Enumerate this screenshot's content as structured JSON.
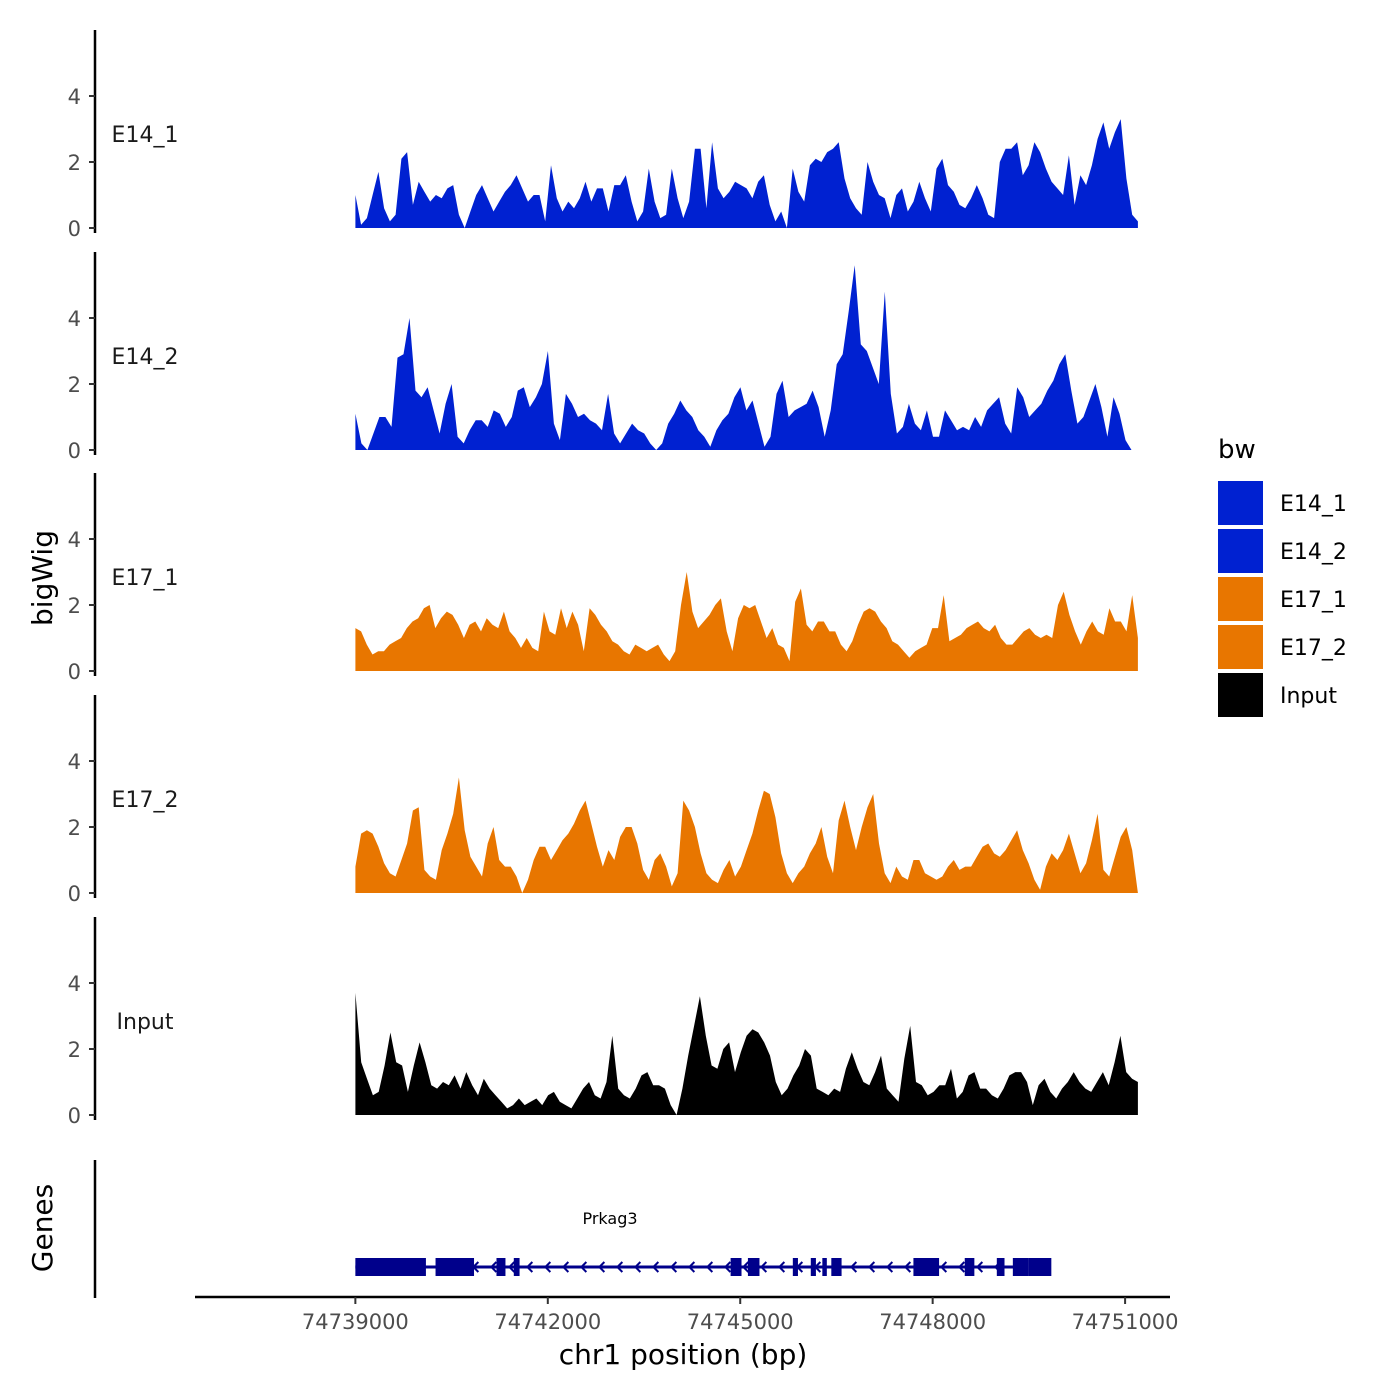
{
  "chart_data": {
    "type": "area",
    "title": "",
    "xlabel": "chr1 position (bp)",
    "ylabel": "bigWig",
    "genes_label": "Genes",
    "xlim": [
      74736500,
      74751700
    ],
    "x_ticks": [
      74739000,
      74742000,
      74745000,
      74748000,
      74751000
    ],
    "x_tick_labels": [
      "74739000",
      "74742000",
      "74745000",
      "74748000",
      "74751000"
    ],
    "ylim": [
      0,
      6
    ],
    "y_ticks": [
      0,
      2,
      4
    ],
    "y_tick_labels": [
      "0",
      "2",
      "4"
    ],
    "legend": {
      "title": "bw",
      "placement": "right",
      "entries": [
        {
          "label": "E14_1",
          "color": "#0021d1"
        },
        {
          "label": "E14_2",
          "color": "#0021d1"
        },
        {
          "label": "E17_1",
          "color": "#e87600"
        },
        {
          "label": "E17_2",
          "color": "#e87600"
        },
        {
          "label": "Input",
          "color": "#000000"
        }
      ]
    },
    "series": [
      {
        "name": "E14_1",
        "color": "#0021d1",
        "x_start": 74739000,
        "x_end": 74751200,
        "values": [
          1.0,
          0.1,
          0.3,
          1.0,
          1.7,
          0.6,
          0.2,
          0.4,
          2.1,
          2.3,
          0.7,
          1.4,
          1.1,
          0.8,
          1.0,
          0.9,
          1.2,
          1.3,
          0.4,
          0.0,
          0.5,
          1.0,
          1.3,
          0.9,
          0.5,
          0.8,
          1.1,
          1.3,
          1.6,
          1.2,
          0.8,
          1.0,
          1.0,
          0.2,
          1.9,
          0.9,
          0.5,
          0.8,
          0.6,
          0.9,
          1.4,
          0.8,
          1.2,
          1.2,
          0.5,
          1.3,
          1.3,
          1.6,
          0.8,
          0.2,
          0.5,
          1.8,
          0.8,
          0.3,
          0.4,
          1.8,
          0.9,
          0.3,
          0.8,
          2.4,
          2.4,
          0.6,
          2.6,
          1.2,
          0.9,
          1.1,
          1.4,
          1.3,
          1.2,
          0.9,
          1.4,
          1.6,
          0.7,
          0.2,
          0.5,
          0.0,
          1.8,
          1.1,
          0.8,
          1.9,
          2.1,
          2.0,
          2.3,
          2.4,
          2.6,
          1.5,
          0.9,
          0.6,
          0.4,
          2.0,
          1.4,
          1.0,
          0.9,
          0.3,
          1.0,
          1.2,
          0.5,
          0.8,
          1.4,
          0.9,
          0.5,
          1.8,
          2.1,
          1.3,
          1.1,
          0.7,
          0.6,
          0.9,
          1.3,
          0.9,
          0.4,
          0.3,
          2.0,
          2.4,
          2.4,
          2.6,
          1.6,
          1.9,
          2.6,
          2.3,
          1.8,
          1.4,
          1.2,
          1.0,
          2.2,
          0.7,
          1.6,
          1.3,
          1.9,
          2.7,
          3.2,
          2.4,
          2.9,
          3.3,
          1.5,
          0.4,
          0.2
        ]
      },
      {
        "name": "E14_2",
        "color": "#0021d1",
        "x_start": 74739000,
        "x_end": 74751100,
        "values": [
          1.1,
          0.2,
          0.0,
          0.5,
          1.0,
          1.0,
          0.7,
          2.8,
          2.9,
          4.0,
          1.8,
          1.6,
          1.9,
          1.2,
          0.5,
          1.4,
          2.0,
          0.4,
          0.2,
          0.6,
          0.9,
          0.9,
          0.7,
          1.2,
          1.1,
          0.7,
          1.0,
          1.8,
          1.9,
          1.3,
          1.6,
          2.0,
          3.0,
          0.8,
          0.3,
          1.7,
          1.4,
          1.0,
          1.1,
          0.9,
          0.8,
          0.6,
          1.7,
          0.5,
          0.2,
          0.5,
          0.8,
          0.6,
          0.5,
          0.2,
          0.0,
          0.2,
          0.8,
          1.1,
          1.5,
          1.2,
          1.0,
          0.6,
          0.4,
          0.1,
          0.6,
          0.9,
          1.1,
          1.6,
          1.9,
          1.2,
          1.5,
          0.8,
          0.1,
          0.4,
          1.7,
          2.1,
          1.0,
          1.2,
          1.3,
          1.4,
          1.8,
          1.3,
          0.4,
          1.2,
          2.6,
          2.9,
          4.2,
          5.6,
          3.2,
          3.0,
          2.5,
          2.0,
          4.8,
          1.7,
          0.5,
          0.7,
          1.4,
          0.8,
          0.6,
          1.2,
          0.4,
          0.4,
          1.2,
          0.9,
          0.6,
          0.7,
          0.6,
          1.0,
          0.7,
          1.2,
          1.4,
          1.6,
          0.8,
          0.5,
          1.9,
          1.6,
          1.0,
          1.2,
          1.4,
          1.8,
          2.1,
          2.6,
          2.9,
          1.8,
          0.8,
          1.0,
          1.5,
          2.0,
          1.3,
          0.4,
          1.6,
          1.1,
          0.3,
          0.0
        ]
      },
      {
        "name": "E17_1",
        "color": "#e87600",
        "x_start": 74739000,
        "x_end": 74751200,
        "values": [
          1.3,
          1.2,
          0.8,
          0.5,
          0.6,
          0.6,
          0.8,
          0.9,
          1.0,
          1.3,
          1.5,
          1.6,
          1.9,
          2.0,
          1.3,
          1.6,
          1.8,
          1.7,
          1.4,
          1.0,
          1.4,
          1.5,
          1.2,
          1.6,
          1.4,
          1.3,
          1.8,
          1.2,
          1.0,
          0.7,
          1.0,
          0.7,
          0.6,
          1.8,
          1.2,
          1.1,
          1.9,
          1.3,
          1.8,
          1.4,
          0.6,
          1.9,
          1.7,
          1.4,
          1.2,
          0.9,
          0.8,
          0.6,
          0.5,
          0.8,
          0.7,
          0.6,
          0.7,
          0.8,
          0.5,
          0.3,
          0.6,
          2.0,
          3.0,
          1.8,
          1.3,
          1.5,
          1.7,
          2.0,
          2.2,
          1.2,
          0.6,
          1.6,
          2.0,
          1.9,
          2.0,
          1.5,
          1.0,
          1.3,
          0.8,
          0.7,
          0.3,
          2.1,
          2.5,
          1.4,
          1.2,
          1.5,
          1.5,
          1.2,
          1.2,
          0.8,
          0.6,
          0.9,
          1.4,
          1.8,
          1.9,
          1.8,
          1.5,
          1.3,
          0.9,
          0.8,
          0.6,
          0.4,
          0.6,
          0.7,
          0.8,
          1.3,
          1.3,
          2.3,
          0.9,
          1.0,
          1.1,
          1.3,
          1.4,
          1.5,
          1.3,
          1.2,
          1.4,
          1.0,
          0.8,
          0.8,
          1.0,
          1.2,
          1.3,
          1.1,
          1.0,
          1.1,
          1.0,
          2.0,
          2.4,
          1.7,
          1.2,
          0.8,
          1.2,
          1.5,
          1.2,
          1.1,
          1.9,
          1.5,
          1.5,
          1.2,
          2.3,
          1.0
        ]
      },
      {
        "name": "E17_2",
        "color": "#e87600",
        "x_start": 74739000,
        "x_end": 74751200,
        "values": [
          0.8,
          1.8,
          1.9,
          1.8,
          1.4,
          0.9,
          0.6,
          0.5,
          1.0,
          1.5,
          2.5,
          2.6,
          0.7,
          0.5,
          0.4,
          1.3,
          1.8,
          2.4,
          3.5,
          1.9,
          1.1,
          0.8,
          0.5,
          1.5,
          2.0,
          1.0,
          0.8,
          0.8,
          0.5,
          0.0,
          0.4,
          1.0,
          1.4,
          1.4,
          1.0,
          1.3,
          1.6,
          1.8,
          2.1,
          2.5,
          2.8,
          2.1,
          1.4,
          0.8,
          1.3,
          1.0,
          1.7,
          2.0,
          2.0,
          1.5,
          0.7,
          0.4,
          1.0,
          1.2,
          0.8,
          0.2,
          0.6,
          2.8,
          2.5,
          2.0,
          1.2,
          0.6,
          0.4,
          0.3,
          0.7,
          1.0,
          0.5,
          0.8,
          1.3,
          1.8,
          2.5,
          3.1,
          3.0,
          2.3,
          1.2,
          0.6,
          0.3,
          0.6,
          0.8,
          1.2,
          1.5,
          2.0,
          1.1,
          0.6,
          2.2,
          2.8,
          2.0,
          1.3,
          2.0,
          2.6,
          3.0,
          1.5,
          0.6,
          0.3,
          0.8,
          0.5,
          0.4,
          1.0,
          1.0,
          0.6,
          0.5,
          0.4,
          0.5,
          0.8,
          1.0,
          0.7,
          0.8,
          0.8,
          1.1,
          1.4,
          1.5,
          1.2,
          1.1,
          1.3,
          1.6,
          1.9,
          1.3,
          0.9,
          0.4,
          0.1,
          0.8,
          1.2,
          1.0,
          1.3,
          1.8,
          1.2,
          0.6,
          0.9,
          1.6,
          2.4,
          0.7,
          0.5,
          1.1,
          1.7,
          2.0,
          1.3,
          0.0
        ]
      },
      {
        "name": "Input",
        "color": "#000000",
        "x_start": 74739000,
        "x_end": 74751200,
        "values": [
          3.7,
          1.6,
          1.1,
          0.6,
          0.7,
          1.5,
          2.5,
          1.6,
          1.5,
          0.7,
          1.5,
          2.2,
          1.6,
          0.9,
          0.8,
          1.0,
          0.9,
          1.2,
          0.8,
          1.3,
          0.9,
          0.6,
          1.1,
          0.8,
          0.6,
          0.4,
          0.2,
          0.3,
          0.5,
          0.3,
          0.4,
          0.5,
          0.3,
          0.6,
          0.7,
          0.4,
          0.3,
          0.2,
          0.5,
          0.8,
          1.0,
          0.6,
          0.5,
          1.0,
          2.4,
          0.8,
          0.6,
          0.5,
          0.8,
          1.2,
          1.3,
          0.9,
          0.9,
          0.8,
          0.3,
          0.0,
          0.8,
          1.8,
          2.7,
          3.6,
          2.4,
          1.5,
          1.4,
          2.0,
          2.2,
          1.3,
          1.9,
          2.4,
          2.6,
          2.5,
          2.2,
          1.8,
          1.0,
          0.6,
          0.8,
          1.2,
          1.5,
          2.0,
          1.8,
          0.8,
          0.7,
          0.6,
          0.8,
          0.7,
          1.4,
          1.9,
          1.4,
          1.0,
          0.9,
          1.3,
          1.8,
          0.8,
          0.6,
          0.4,
          1.7,
          2.7,
          1.0,
          0.9,
          0.6,
          0.7,
          0.9,
          0.9,
          1.4,
          0.5,
          0.7,
          1.2,
          1.3,
          0.8,
          0.8,
          0.6,
          0.5,
          0.8,
          1.2,
          1.3,
          1.3,
          1.0,
          0.3,
          0.9,
          1.1,
          0.7,
          0.5,
          0.8,
          1.0,
          1.3,
          1.0,
          0.8,
          0.7,
          1.0,
          1.3,
          0.9,
          1.6,
          2.4,
          1.3,
          1.1,
          1.0
        ]
      }
    ],
    "gene": {
      "name": "Prkag3",
      "color": "#00008b",
      "strand": "-",
      "start": 74739000,
      "end": 74749300,
      "exons": [
        [
          74739000,
          74740100
        ],
        [
          74740250,
          74740850
        ],
        [
          74741200,
          74741340
        ],
        [
          74741470,
          74741560
        ],
        [
          74744850,
          74745020
        ],
        [
          74745120,
          74745220
        ],
        [
          74745200,
          74745300
        ],
        [
          74745820,
          74745900
        ],
        [
          74746100,
          74746180
        ],
        [
          74746280,
          74746350
        ],
        [
          74746420,
          74746580
        ],
        [
          74747700,
          74748100
        ],
        [
          74748500,
          74748650
        ],
        [
          74749000,
          74749120
        ],
        [
          74749250,
          74749500
        ],
        [
          74749500,
          74749850
        ]
      ]
    }
  }
}
